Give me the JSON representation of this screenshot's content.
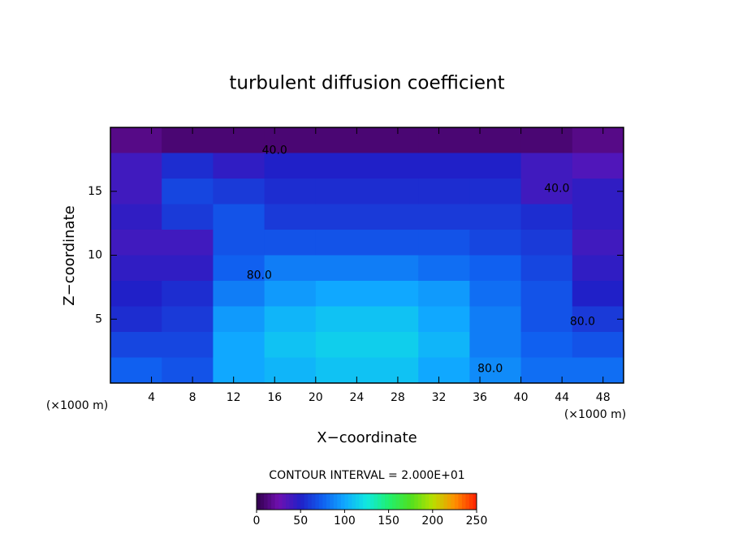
{
  "chart_data": {
    "type": "contour",
    "title": "turbulent diffusion coefficient",
    "xlabel": "X−coordinate",
    "ylabel": "Z−coordinate",
    "x_unit": "(×1000 m)",
    "y_unit": "(×1000 m)",
    "xlim": [
      0,
      50
    ],
    "ylim": [
      0,
      20
    ],
    "xticks": [
      4,
      8,
      12,
      16,
      20,
      24,
      28,
      32,
      36,
      40,
      44,
      48
    ],
    "yticks": [
      5,
      10,
      15
    ],
    "x": [
      2.5,
      7.5,
      12.5,
      17.5,
      22.5,
      27.5,
      32.5,
      37.5,
      42.5,
      47.5
    ],
    "y": [
      19,
      17,
      15,
      13,
      11,
      9,
      7,
      5,
      3,
      1
    ],
    "z": [
      [
        15,
        10,
        10,
        10,
        10,
        10,
        10,
        10,
        10,
        15
      ],
      [
        40,
        55,
        45,
        50,
        50,
        50,
        50,
        50,
        40,
        35
      ],
      [
        40,
        65,
        60,
        55,
        55,
        55,
        55,
        55,
        40,
        45
      ],
      [
        45,
        60,
        70,
        60,
        60,
        60,
        60,
        60,
        55,
        45
      ],
      [
        40,
        40,
        70,
        70,
        70,
        70,
        70,
        65,
        60,
        40
      ],
      [
        45,
        45,
        75,
        85,
        85,
        85,
        80,
        75,
        65,
        45
      ],
      [
        50,
        55,
        85,
        95,
        100,
        100,
        95,
        80,
        70,
        50
      ],
      [
        55,
        60,
        95,
        105,
        110,
        110,
        100,
        85,
        70,
        60
      ],
      [
        65,
        65,
        100,
        110,
        115,
        115,
        105,
        85,
        75,
        70
      ],
      [
        75,
        70,
        100,
        105,
        110,
        110,
        100,
        90,
        80,
        80
      ]
    ],
    "contour_labels": [
      {
        "text": "40.0",
        "value": 40,
        "x": 16,
        "y": 18.2
      },
      {
        "text": "40.0",
        "value": 40,
        "x": 43.5,
        "y": 15.2
      },
      {
        "text": "80.0",
        "value": 80,
        "x": 14.5,
        "y": 8.4
      },
      {
        "text": "80.0",
        "value": 80,
        "x": 46,
        "y": 4.8
      },
      {
        "text": "80.0",
        "value": 80,
        "x": 37,
        "y": 1.1
      }
    ],
    "contour_interval": "CONTOUR INTERVAL = 2.000E+01",
    "clim": [
      0,
      250
    ],
    "cticks": [
      0,
      50,
      100,
      150,
      200,
      250
    ],
    "colormap": [
      "#30004a",
      "#7010b0",
      "#2020c8",
      "#1060f0",
      "#10a8ff",
      "#10e8e0",
      "#20f070",
      "#50e020",
      "#b8e000",
      "#ff9000",
      "#ff2000"
    ]
  }
}
